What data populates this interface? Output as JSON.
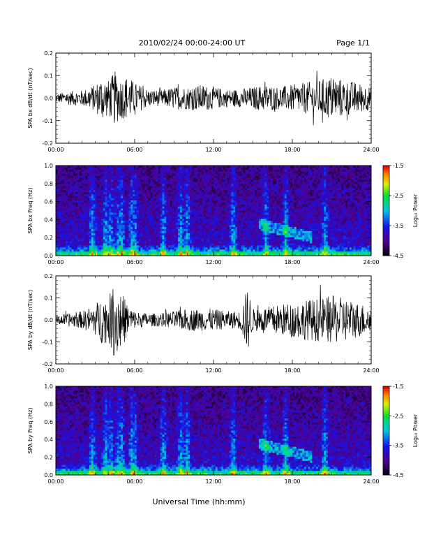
{
  "header": {
    "title": "2010/02/24  00:00-24:00 UT",
    "page_label": "Page 1/1"
  },
  "footer": {
    "xlabel": "Universal Time (hh:mm)"
  },
  "chart_data": [
    {
      "type": "line",
      "ylabel": "SPA bx dB/dt (nT/sec)",
      "xlim": [
        0,
        24
      ],
      "ylim": [
        -0.2,
        0.2
      ],
      "xticks": [
        "00:00",
        "06:00",
        "12:00",
        "18:00",
        "24:00"
      ],
      "yticks": [
        "0.2",
        "0.1",
        "0.0",
        "-0.1",
        "-0.2"
      ],
      "series": [
        {
          "x": [
            0,
            1,
            2,
            3,
            3.5,
            4,
            4.5,
            5,
            5.5,
            6,
            7,
            8,
            9,
            10,
            11,
            12,
            13,
            14,
            15,
            16,
            17,
            18,
            19,
            20,
            21,
            22,
            23,
            24
          ],
          "amplitude": [
            0.02,
            0.03,
            0.035,
            0.06,
            0.1,
            0.08,
            0.12,
            0.09,
            0.1,
            0.07,
            0.04,
            0.035,
            0.05,
            0.05,
            0.06,
            0.05,
            0.04,
            0.04,
            0.05,
            0.06,
            0.05,
            0.06,
            0.07,
            0.08,
            0.1,
            0.08,
            0.07,
            0.05
          ]
        }
      ]
    },
    {
      "type": "heatmap",
      "ylabel": "SPA bx Freq (Hz)",
      "xlim": [
        0,
        24
      ],
      "ylim": [
        0,
        1.0
      ],
      "xticks": [
        "00:00",
        "06:00",
        "12:00",
        "18:00",
        "24:00"
      ],
      "yticks": [
        "1.0",
        "0.8",
        "0.6",
        "0.4",
        "0.2",
        "0.0"
      ],
      "colorbar": {
        "label": "Log₁₀ Power",
        "range": [
          -4.5,
          -1.5
        ],
        "ticks": [
          "-1.5",
          "-2.5",
          "-3.5",
          "-4.5"
        ]
      },
      "event_x": [
        2.8,
        3.8,
        4.2,
        4.8,
        5.0,
        5.8,
        6.0,
        8.2,
        9.5,
        10.0,
        13.5,
        16.0,
        17.5,
        20.5
      ],
      "band": {
        "x": [
          15.5,
          19.5
        ],
        "y": [
          0.2,
          0.35
        ]
      }
    },
    {
      "type": "line",
      "ylabel": "SPA by dB/dt (nT/sec)",
      "xlim": [
        0,
        24
      ],
      "ylim": [
        -0.2,
        0.2
      ],
      "xticks": [
        "00:00",
        "06:00",
        "12:00",
        "18:00",
        "24:00"
      ],
      "yticks": [
        "0.2",
        "0.1",
        "0.0",
        "-0.1",
        "-0.2"
      ],
      "series": [
        {
          "x": [
            0,
            1,
            2,
            3,
            3.5,
            4,
            4.5,
            5,
            5.5,
            6,
            7,
            8,
            9,
            10,
            11,
            12,
            13,
            14,
            14.6,
            15,
            16,
            17,
            18,
            19,
            20,
            21,
            22,
            23,
            24
          ],
          "amplitude": [
            0.02,
            0.03,
            0.04,
            0.07,
            0.11,
            0.1,
            0.18,
            0.13,
            0.07,
            0.04,
            0.03,
            0.03,
            0.04,
            0.05,
            0.05,
            0.05,
            0.04,
            0.04,
            0.15,
            0.05,
            0.06,
            0.07,
            0.08,
            0.09,
            0.1,
            0.11,
            0.1,
            0.08,
            0.06
          ]
        }
      ]
    },
    {
      "type": "heatmap",
      "ylabel": "SPA by Freq (Hz)",
      "xlim": [
        0,
        24
      ],
      "ylim": [
        0,
        1.0
      ],
      "xticks": [
        "00:00",
        "06:00",
        "12:00",
        "18:00",
        "24:00"
      ],
      "yticks": [
        "1.0",
        "0.8",
        "0.6",
        "0.4",
        "0.2",
        "0.0"
      ],
      "colorbar": {
        "label": "Log₁₀ Power",
        "range": [
          -4.5,
          -1.5
        ],
        "ticks": [
          "-1.5",
          "-2.5",
          "-3.5",
          "-4.5"
        ]
      },
      "event_x": [
        2.8,
        3.8,
        4.2,
        4.8,
        5.0,
        5.8,
        6.0,
        8.2,
        9.5,
        10.0,
        13.5,
        16.0,
        17.5,
        20.5
      ],
      "band": {
        "x": [
          15.5,
          19.5
        ],
        "y": [
          0.2,
          0.35
        ]
      }
    }
  ]
}
